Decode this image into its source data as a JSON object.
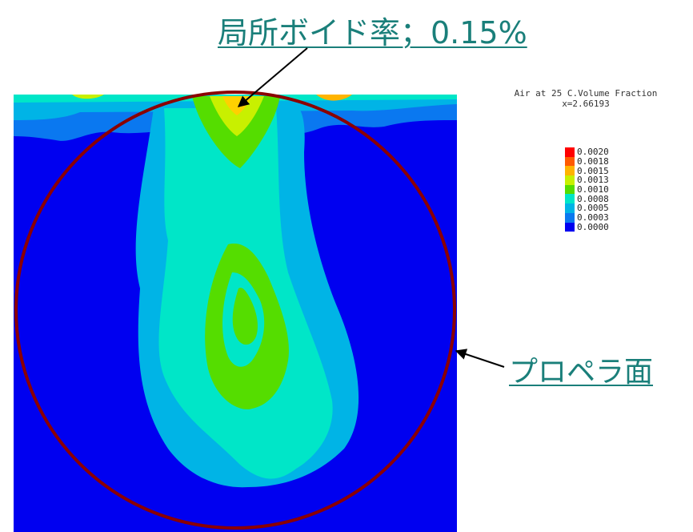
{
  "annotations": {
    "local_void": "局所ボイド率；0.15%",
    "propeller_plane": "プロペラ面"
  },
  "legend": {
    "title_line1": "Air at 25 C.Volume Fraction",
    "title_line2": "x=2.66193",
    "entries": [
      {
        "label": "0.0020",
        "color": "#ff0000"
      },
      {
        "label": "0.0018",
        "color": "#ff5a00"
      },
      {
        "label": "0.0015",
        "color": "#ffb400"
      },
      {
        "label": "0.0013",
        "color": "#c8f000"
      },
      {
        "label": "0.0010",
        "color": "#55dd00"
      },
      {
        "label": "0.0008",
        "color": "#00e6c8"
      },
      {
        "label": "0.0005",
        "color": "#00b4e6"
      },
      {
        "label": "0.0003",
        "color": "#0a78f0"
      },
      {
        "label": "0.0000",
        "color": "#0000f0"
      }
    ]
  },
  "chart_data": {
    "type": "heatmap",
    "title": "Air at 25 C.Volume Fraction",
    "subtitle": "x=2.66193",
    "colorbar_range": [
      0.0,
      0.002
    ],
    "colorbar_ticks": [
      0.002,
      0.0018,
      0.0015,
      0.0013,
      0.001,
      0.0008,
      0.0005,
      0.0003,
      0.0
    ],
    "peak_local_void_fraction_percent": 0.15
  }
}
